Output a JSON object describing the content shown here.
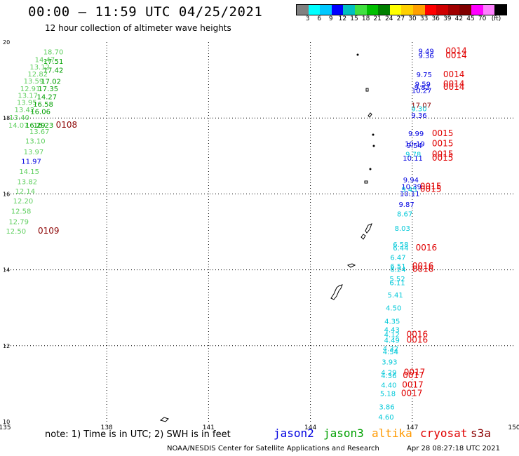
{
  "header": {
    "title": "00:00 – 11:59 UTC 04/25/2021",
    "subtitle": "12 hour collection of altimeter wave heights"
  },
  "colorbar": {
    "colors": [
      "#808080",
      "#00ffff",
      "#00c8ff",
      "#0000ff",
      "#00c0c0",
      "#40e040",
      "#00c000",
      "#008000",
      "#ffff00",
      "#ffd000",
      "#ffa000",
      "#ff0000",
      "#d00000",
      "#a00000",
      "#800000",
      "#ff00ff",
      "#ff80ff",
      "#000000"
    ],
    "ticks": [
      "3",
      "6",
      "9",
      "12",
      "15",
      "18",
      "21",
      "24",
      "27",
      "30",
      "33",
      "36",
      "39",
      "42",
      "45",
      "70"
    ],
    "unit": "(ft)"
  },
  "axes": {
    "lon_ticks": [
      "135",
      "138",
      "141",
      "144",
      "147",
      "150"
    ],
    "lat_ticks": [
      "20",
      "18",
      "16",
      "14",
      "12",
      "10"
    ]
  },
  "footer": {
    "note": "note:  1) Time is in UTC;  2) SWH is in feet",
    "satellites": [
      {
        "name": "jason2",
        "color": "#0000e0"
      },
      {
        "name": "jason3",
        "color": "#00a000"
      },
      {
        "name": "altika",
        "color": "#ff9900"
      },
      {
        "name": "cryosat",
        "color": "#e00000"
      },
      {
        "name": "s3a",
        "color": "#8b0000"
      }
    ],
    "credit": "NOAA/NESDIS Center for Satellite Applications and Research",
    "timestamp": "Apr 28 08:27:18 UTC 2021"
  },
  "colors": {
    "jason2": "#0000e0",
    "jason3": "#00a000",
    "jason3_light": "#5fcf5f",
    "altika": "#00c8d8",
    "cryosat": "#e00000",
    "s3a": "#8b0000"
  },
  "wave_labels": [
    {
      "text": "18.70",
      "lon": 136.13,
      "lat": 19.75,
      "sat": "jason3_light"
    },
    {
      "text": "14.47",
      "lon": 135.88,
      "lat": 19.55,
      "sat": "jason3_light"
    },
    {
      "text": "17.51",
      "lon": 136.13,
      "lat": 19.5,
      "sat": "jason3"
    },
    {
      "text": "13.12",
      "lon": 135.73,
      "lat": 19.35,
      "sat": "jason3_light"
    },
    {
      "text": "17.42",
      "lon": 136.13,
      "lat": 19.27,
      "sat": "jason3"
    },
    {
      "text": "12.82",
      "lon": 135.67,
      "lat": 19.17,
      "sat": "jason3_light"
    },
    {
      "text": "13.59",
      "lon": 135.55,
      "lat": 18.98,
      "sat": "jason3_light"
    },
    {
      "text": "17.02",
      "lon": 136.06,
      "lat": 18.97,
      "sat": "jason3"
    },
    {
      "text": "12.91",
      "lon": 135.45,
      "lat": 18.78,
      "sat": "jason3_light"
    },
    {
      "text": "17.35",
      "lon": 135.98,
      "lat": 18.78,
      "sat": "jason3"
    },
    {
      "text": "13.17",
      "lon": 135.38,
      "lat": 18.6,
      "sat": "jason3_light"
    },
    {
      "text": "14.27",
      "lon": 135.94,
      "lat": 18.57,
      "sat": "jason3"
    },
    {
      "text": "13.95",
      "lon": 135.35,
      "lat": 18.42,
      "sat": "jason3_light"
    },
    {
      "text": "16.58",
      "lon": 135.83,
      "lat": 18.37,
      "sat": "jason3"
    },
    {
      "text": "13.42",
      "lon": 135.28,
      "lat": 18.23,
      "sat": "jason3_light"
    },
    {
      "text": "16.06",
      "lon": 135.75,
      "lat": 18.18,
      "sat": "jason3"
    },
    {
      "text": "13.40",
      "lon": 135.13,
      "lat": 18.02,
      "sat": "jason3_light"
    },
    {
      "text": "16.23",
      "lon": 135.84,
      "lat": 17.82,
      "sat": "jason3"
    },
    {
      "text": "14.07",
      "lon": 135.1,
      "lat": 17.82,
      "sat": "jason3_light"
    },
    {
      "text": "16.29",
      "lon": 135.6,
      "lat": 17.82,
      "sat": "jason3"
    },
    {
      "text": "0108",
      "lon": 136.5,
      "lat": 17.82,
      "sat": "s3a"
    },
    {
      "text": "13.67",
      "lon": 135.72,
      "lat": 17.65,
      "sat": "jason3_light"
    },
    {
      "text": "13.10",
      "lon": 135.6,
      "lat": 17.4,
      "sat": "jason3_light"
    },
    {
      "text": "13.97",
      "lon": 135.55,
      "lat": 17.12,
      "sat": "jason3_light"
    },
    {
      "text": "11.97",
      "lon": 135.48,
      "lat": 16.87,
      "sat": "jason2"
    },
    {
      "text": "14.15",
      "lon": 135.42,
      "lat": 16.6,
      "sat": "jason3_light"
    },
    {
      "text": "13.82",
      "lon": 135.36,
      "lat": 16.33,
      "sat": "jason3_light"
    },
    {
      "text": "12.14",
      "lon": 135.3,
      "lat": 16.08,
      "sat": "jason3_light"
    },
    {
      "text": "12.20",
      "lon": 135.24,
      "lat": 15.82,
      "sat": "jason3_light"
    },
    {
      "text": "12.58",
      "lon": 135.18,
      "lat": 15.55,
      "sat": "jason3_light"
    },
    {
      "text": "12.79",
      "lon": 135.11,
      "lat": 15.28,
      "sat": "jason3_light"
    },
    {
      "text": "12.50",
      "lon": 135.03,
      "lat": 15.03,
      "sat": "jason3_light"
    },
    {
      "text": "0109",
      "lon": 135.97,
      "lat": 15.03,
      "sat": "s3a"
    },
    {
      "text": "9.49",
      "lon": 147.18,
      "lat": 19.77,
      "sat": "jason2"
    },
    {
      "text": "0014",
      "lon": 147.98,
      "lat": 19.77,
      "sat": "cryosat"
    },
    {
      "text": "9.36",
      "lon": 147.18,
      "lat": 19.65,
      "sat": "jason2"
    },
    {
      "text": "0014",
      "lon": 147.98,
      "lat": 19.65,
      "sat": "cryosat"
    },
    {
      "text": "9.75",
      "lon": 147.12,
      "lat": 19.15,
      "sat": "jason2"
    },
    {
      "text": "0014",
      "lon": 147.91,
      "lat": 19.15,
      "sat": "cryosat"
    },
    {
      "text": "9.59",
      "lon": 147.08,
      "lat": 18.9,
      "sat": "jason2"
    },
    {
      "text": "0014",
      "lon": 147.91,
      "lat": 18.9,
      "sat": "cryosat"
    },
    {
      "text": "9.82",
      "lon": 147.06,
      "lat": 18.82,
      "sat": "jason2"
    },
    {
      "text": "0014",
      "lon": 147.91,
      "lat": 18.82,
      "sat": "cryosat"
    },
    {
      "text": "10.27",
      "lon": 146.98,
      "lat": 18.73,
      "sat": "jason2"
    },
    {
      "text": "17.07",
      "lon": 146.97,
      "lat": 18.35,
      "sat": "s3a"
    },
    {
      "text": "9.30",
      "lon": 146.97,
      "lat": 18.25,
      "sat": "altika"
    },
    {
      "text": "9.36",
      "lon": 146.97,
      "lat": 18.08,
      "sat": "jason2"
    },
    {
      "text": "9.99",
      "lon": 146.88,
      "lat": 17.6,
      "sat": "jason2"
    },
    {
      "text": "0015",
      "lon": 147.58,
      "lat": 17.6,
      "sat": "cryosat"
    },
    {
      "text": "10.19",
      "lon": 146.78,
      "lat": 17.33,
      "sat": "jason2"
    },
    {
      "text": "0015",
      "lon": 147.58,
      "lat": 17.33,
      "sat": "cryosat"
    },
    {
      "text": "9.54",
      "lon": 146.83,
      "lat": 17.28,
      "sat": "jason2"
    },
    {
      "text": "9.78",
      "lon": 146.8,
      "lat": 17.05,
      "sat": "altika"
    },
    {
      "text": "0015",
      "lon": 147.58,
      "lat": 17.05,
      "sat": "cryosat"
    },
    {
      "text": "10.11",
      "lon": 146.72,
      "lat": 16.95,
      "sat": "jason2"
    },
    {
      "text": "0015",
      "lon": 147.58,
      "lat": 16.95,
      "sat": "cryosat"
    },
    {
      "text": "9.94",
      "lon": 146.73,
      "lat": 16.38,
      "sat": "jason2"
    },
    {
      "text": "10.39",
      "lon": 146.68,
      "lat": 16.2,
      "sat": "jason2"
    },
    {
      "text": "0015",
      "lon": 147.23,
      "lat": 16.2,
      "sat": "cryosat"
    },
    {
      "text": "9.45",
      "lon": 146.68,
      "lat": 16.13,
      "sat": "altika"
    },
    {
      "text": "0015",
      "lon": 147.23,
      "lat": 16.13,
      "sat": "cryosat"
    },
    {
      "text": "10.11",
      "lon": 146.63,
      "lat": 16.02,
      "sat": "jason2"
    },
    {
      "text": "9.87",
      "lon": 146.6,
      "lat": 15.73,
      "sat": "jason2"
    },
    {
      "text": "8.67",
      "lon": 146.55,
      "lat": 15.48,
      "sat": "altika"
    },
    {
      "text": "8.03",
      "lon": 146.48,
      "lat": 15.1,
      "sat": "altika"
    },
    {
      "text": "6.58",
      "lon": 146.43,
      "lat": 14.68,
      "sat": "altika"
    },
    {
      "text": "6.44",
      "lon": 146.43,
      "lat": 14.58,
      "sat": "altika"
    },
    {
      "text": "0016",
      "lon": 147.1,
      "lat": 14.58,
      "sat": "cryosat"
    },
    {
      "text": "6.47",
      "lon": 146.35,
      "lat": 14.33,
      "sat": "altika"
    },
    {
      "text": "6.51",
      "lon": 146.35,
      "lat": 14.1,
      "sat": "altika"
    },
    {
      "text": "0016",
      "lon": 147.0,
      "lat": 14.1,
      "sat": "cryosat"
    },
    {
      "text": "6.24",
      "lon": 146.35,
      "lat": 14.02,
      "sat": "altika"
    },
    {
      "text": "0016",
      "lon": 147.0,
      "lat": 14.02,
      "sat": "cryosat"
    },
    {
      "text": "5.52",
      "lon": 146.33,
      "lat": 13.77,
      "sat": "altika"
    },
    {
      "text": "6.11",
      "lon": 146.33,
      "lat": 13.67,
      "sat": "altika"
    },
    {
      "text": "5.41",
      "lon": 146.27,
      "lat": 13.35,
      "sat": "altika"
    },
    {
      "text": "4.50",
      "lon": 146.22,
      "lat": 13.0,
      "sat": "altika"
    },
    {
      "text": "4.35",
      "lon": 146.18,
      "lat": 12.65,
      "sat": "altika"
    },
    {
      "text": "4.43",
      "lon": 146.17,
      "lat": 12.43,
      "sat": "altika"
    },
    {
      "text": "4.12",
      "lon": 146.17,
      "lat": 12.3,
      "sat": "altika"
    },
    {
      "text": "0016",
      "lon": 146.83,
      "lat": 12.3,
      "sat": "cryosat"
    },
    {
      "text": "4.49",
      "lon": 146.17,
      "lat": 12.15,
      "sat": "altika"
    },
    {
      "text": "0016",
      "lon": 146.83,
      "lat": 12.15,
      "sat": "cryosat"
    },
    {
      "text": "4.32",
      "lon": 146.13,
      "lat": 11.93,
      "sat": "altika"
    },
    {
      "text": "4.54",
      "lon": 146.13,
      "lat": 11.85,
      "sat": "altika"
    },
    {
      "text": "3.93",
      "lon": 146.1,
      "lat": 11.58,
      "sat": "altika"
    },
    {
      "text": "4.29",
      "lon": 146.08,
      "lat": 11.3,
      "sat": "altika"
    },
    {
      "text": "0017",
      "lon": 146.75,
      "lat": 11.3,
      "sat": "cryosat"
    },
    {
      "text": "4.36",
      "lon": 146.08,
      "lat": 11.22,
      "sat": "altika"
    },
    {
      "text": "0017",
      "lon": 146.72,
      "lat": 11.22,
      "sat": "cryosat"
    },
    {
      "text": "4.40",
      "lon": 146.08,
      "lat": 10.97,
      "sat": "altika"
    },
    {
      "text": "0017",
      "lon": 146.7,
      "lat": 10.97,
      "sat": "cryosat"
    },
    {
      "text": "5.18",
      "lon": 146.05,
      "lat": 10.75,
      "sat": "altika"
    },
    {
      "text": "0017",
      "lon": 146.67,
      "lat": 10.75,
      "sat": "cryosat"
    },
    {
      "text": "3.86",
      "lon": 146.02,
      "lat": 10.4,
      "sat": "altika"
    },
    {
      "text": "4.60",
      "lon": 146.0,
      "lat": 10.13,
      "sat": "altika"
    }
  ]
}
